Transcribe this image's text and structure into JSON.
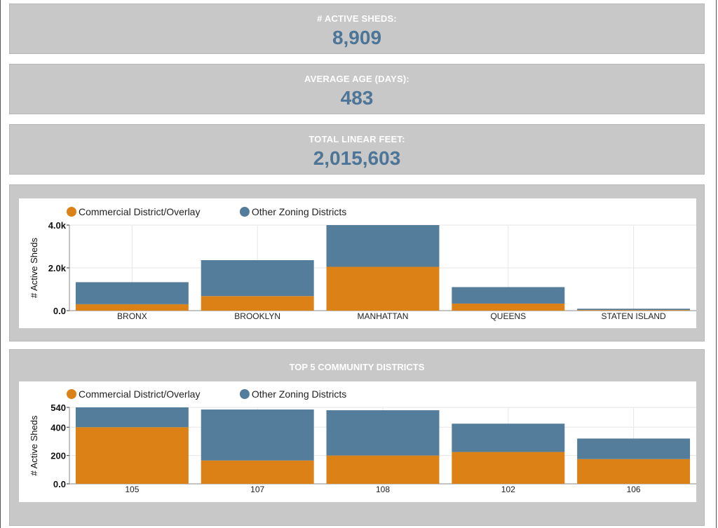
{
  "kpis": {
    "active_sheds": {
      "label": "# ACTIVE SHEDS:",
      "value": "8,909"
    },
    "average_age": {
      "label": "AVERAGE AGE (DAYS):",
      "value": "483"
    },
    "total_linear_feet": {
      "label": "TOTAL LINEAR FEET:",
      "value": "2,015,603"
    }
  },
  "colors": {
    "commercial": "#db8116",
    "other": "#547c9b",
    "kpi_value": "#4c7597"
  },
  "chart_data": [
    {
      "type": "bar",
      "stacked": true,
      "title": "",
      "xlabel": "",
      "ylabel": "# Active Sheds",
      "categories": [
        "BRONX",
        "BROOKLYN",
        "MANHATTAN",
        "QUEENS",
        "STATEN ISLAND"
      ],
      "series": [
        {
          "name": "Commercial District/Overlay",
          "values": [
            300,
            680,
            2050,
            330,
            30
          ]
        },
        {
          "name": "Other Zoning Districts",
          "values": [
            1030,
            1680,
            1950,
            770,
            60
          ]
        }
      ],
      "ylim": [
        0,
        4000
      ],
      "yticks": [
        "0.0",
        "2.0k",
        "4.0k"
      ],
      "legend": "top-left",
      "grid": true
    },
    {
      "type": "bar",
      "stacked": true,
      "title": "TOP 5 COMMUNITY DISTRICTS",
      "xlabel": "",
      "ylabel": "# Active Sheds",
      "categories": [
        "105",
        "107",
        "108",
        "102",
        "106"
      ],
      "series": [
        {
          "name": "Commercial District/Overlay",
          "values": [
            400,
            165,
            200,
            225,
            175
          ]
        },
        {
          "name": "Other Zoning Districts",
          "values": [
            140,
            360,
            320,
            200,
            145
          ]
        }
      ],
      "ylim": [
        0,
        540
      ],
      "yticks": [
        "0.0",
        "200",
        "400",
        "540"
      ],
      "legend": "top-left",
      "grid": true
    }
  ]
}
